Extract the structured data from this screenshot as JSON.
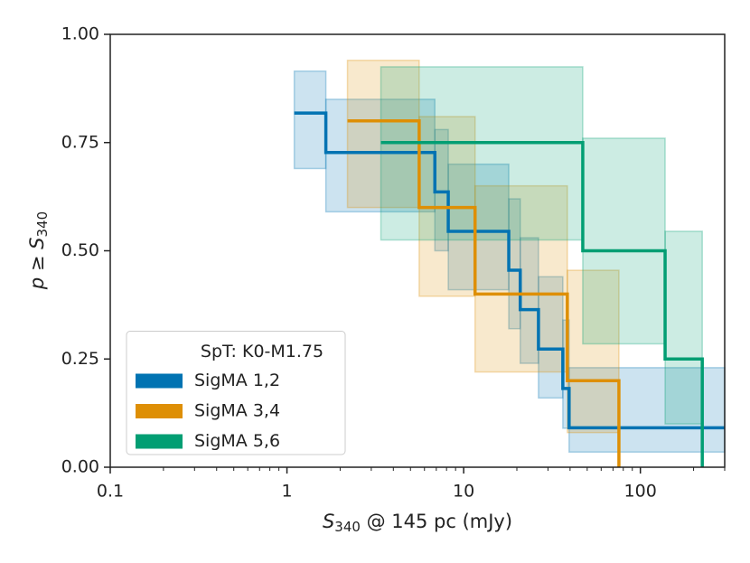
{
  "chart_data": {
    "type": "step",
    "xlabel": {
      "symbol": "S",
      "subscript": "340",
      "text": " @ 145 pc (mJy)"
    },
    "ylabel": {
      "symbol": "p",
      "text": " ≥ ",
      "symbol2": "S",
      "subscript": "340"
    },
    "xscale": "log",
    "xlim": [
      0.1,
      300
    ],
    "xticks": [
      0.1,
      1,
      10,
      100
    ],
    "ylim": [
      0,
      1
    ],
    "yticks": [
      {
        "value": 0,
        "label": "0.00"
      },
      {
        "value": 0.25,
        "label": "0.25"
      },
      {
        "value": 0.5,
        "label": "0.50"
      },
      {
        "value": 0.75,
        "label": "0.75"
      },
      {
        "value": 1,
        "label": "1.00"
      }
    ],
    "legend": {
      "title": "SpT: K0-M1.75",
      "loc": "lower left"
    },
    "series": [
      {
        "name": "SigMA 1,2",
        "color": "#0173b2",
        "x": [
          1.1,
          1.66,
          6.87,
          8.18,
          18,
          20.9,
          26.5,
          36.4,
          39.5
        ],
        "values": [
          0.818,
          0.727,
          0.636,
          0.545,
          0.455,
          0.364,
          0.273,
          0.182,
          0.091
        ],
        "lower": [
          0.69,
          0.59,
          0.5,
          0.41,
          0.32,
          0.24,
          0.16,
          0.09,
          0.035
        ],
        "upper": [
          0.915,
          0.85,
          0.78,
          0.7,
          0.62,
          0.53,
          0.44,
          0.34,
          0.23
        ]
      },
      {
        "name": "SigMA 3,4",
        "color": "#de8f05",
        "x": [
          2.2,
          5.6,
          11.6,
          38.6,
          75.6
        ],
        "values": [
          0.8,
          0.6,
          0.4,
          0.2,
          0
        ],
        "lower": [
          0.6,
          0.395,
          0.22,
          0.08,
          null
        ],
        "upper": [
          0.94,
          0.81,
          0.65,
          0.455,
          null
        ]
      },
      {
        "name": "SigMA 5,6",
        "color": "#029e73",
        "x": [
          3.4,
          47.2,
          138,
          224
        ],
        "values": [
          0.75,
          0.5,
          0.25,
          0
        ],
        "lower": [
          0.525,
          0.285,
          0.1,
          null
        ],
        "upper": [
          0.925,
          0.76,
          0.545,
          null
        ]
      }
    ]
  }
}
